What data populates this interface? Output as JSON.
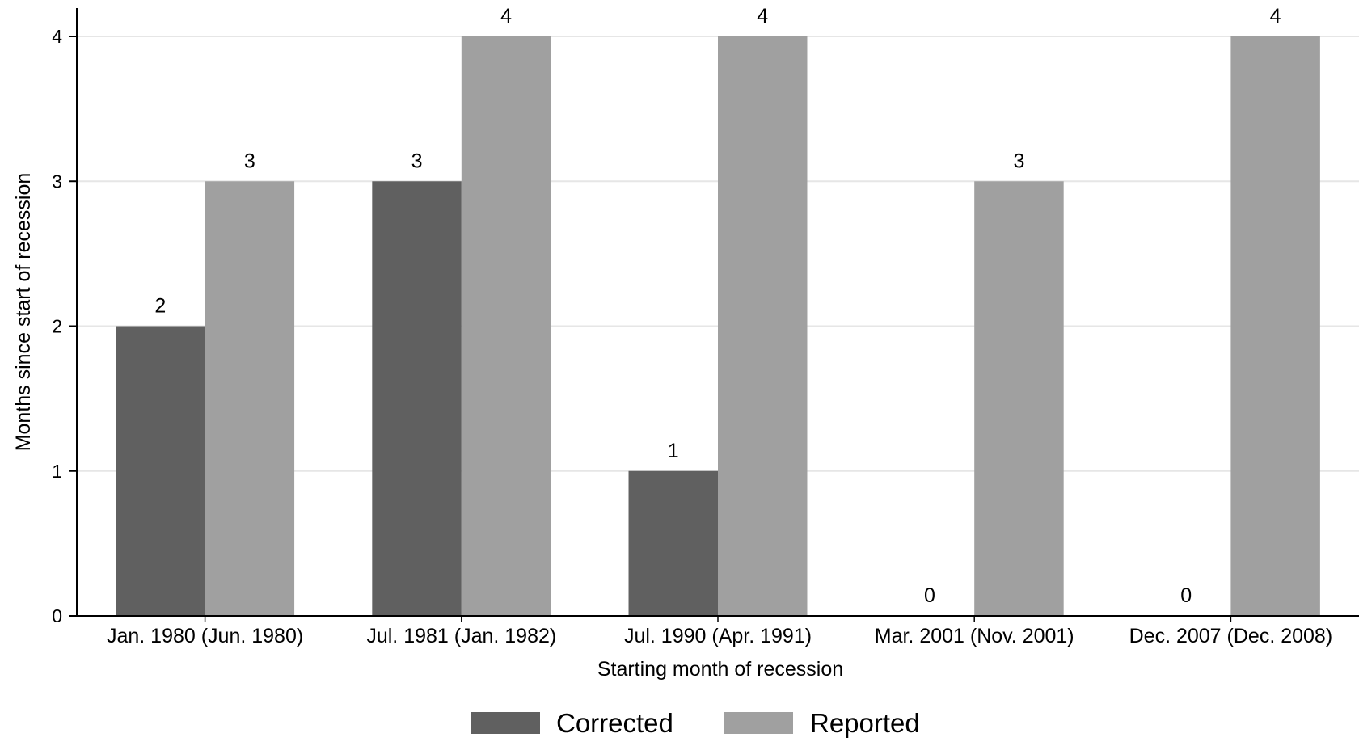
{
  "chart_data": {
    "type": "bar",
    "title": "",
    "xlabel": "Starting month of recession",
    "ylabel": "Months since start of recession",
    "ylim": [
      0,
      4
    ],
    "yticks": [
      0,
      1,
      2,
      3,
      4
    ],
    "grid": true,
    "legend_position": "bottom",
    "categories": [
      "Jan. 1980 (Jun. 1980)",
      "Jul. 1981 (Jan. 1982)",
      "Jul. 1990 (Apr. 1991)",
      "Mar. 2001 (Nov. 2001)",
      "Dec. 2007 (Dec. 2008)"
    ],
    "series": [
      {
        "name": "Corrected",
        "color": "#606060",
        "values": [
          2,
          3,
          1,
          0,
          0
        ]
      },
      {
        "name": "Reported",
        "color": "#a0a0a0",
        "values": [
          3,
          4,
          4,
          3,
          4
        ]
      }
    ]
  },
  "colors": {
    "gridline": "#e6e6e6",
    "axis": "#000000"
  }
}
